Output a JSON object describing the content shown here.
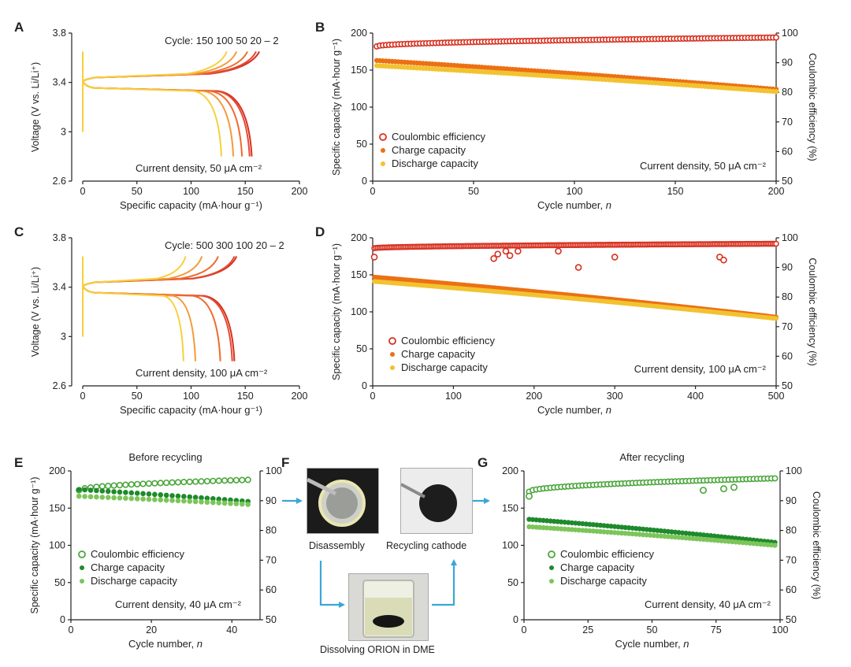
{
  "panel_labels": [
    "A",
    "B",
    "C",
    "D",
    "E",
    "F",
    "G"
  ],
  "colors": {
    "axis": "#222222",
    "red": "#d7301f",
    "orange": "#ec7014",
    "yellow": "#f2c230",
    "green_dark": "#1f8a2c",
    "green_mid": "#4aa63b",
    "green_light": "#7cc55a",
    "arrow": "#3aa6d8"
  },
  "chart_data": [
    {
      "id": "A",
      "type": "line",
      "xlabel": "Specific capacity (mA·hour g⁻¹)",
      "ylabel": "Voltage (V vs. Li/Li⁺)",
      "xlim": [
        0,
        200
      ],
      "ylim": [
        2.6,
        3.8
      ],
      "xticks": [
        0,
        50,
        100,
        150,
        200
      ],
      "yticks": [
        2.6,
        3.0,
        3.4,
        3.8
      ],
      "annotation_cycle": "Cycle:  150  100  50  20 – 2",
      "annotation_current": "Current density, 50 μA cm⁻²",
      "series": [
        {
          "cycle": 2,
          "charge_end": 163,
          "discharge_end": 156,
          "color": "#d7301f"
        },
        {
          "cycle": 20,
          "charge_end": 160,
          "discharge_end": 154,
          "color": "#e34a33"
        },
        {
          "cycle": 50,
          "charge_end": 152,
          "discharge_end": 147,
          "color": "#ef6a2a"
        },
        {
          "cycle": 100,
          "charge_end": 142,
          "discharge_end": 139,
          "color": "#f39a3a"
        },
        {
          "cycle": 150,
          "charge_end": 133,
          "discharge_end": 128,
          "color": "#f6d03c"
        }
      ]
    },
    {
      "id": "B",
      "type": "scatter",
      "xlabel": "Cycle number, n",
      "ylabel": "Specific capacity (mA·hour g⁻¹)",
      "y2label": "Coulombic efficiency (%)",
      "xlim": [
        0,
        200
      ],
      "ylim": [
        0,
        200
      ],
      "y2lim": [
        50,
        100
      ],
      "xticks": [
        0,
        50,
        100,
        150,
        200
      ],
      "yticks": [
        0,
        50,
        100,
        150,
        200
      ],
      "y2ticks": [
        50,
        60,
        70,
        80,
        90,
        100
      ],
      "legend": [
        "Coulombic efficiency",
        "Charge capacity",
        "Discharge capacity"
      ],
      "annotation_current": "Current density, 50 μA cm⁻²",
      "series": [
        {
          "name": "Coulombic efficiency",
          "axis": "y2",
          "marker": "open",
          "color": "#d7301f",
          "x_start": 2,
          "x_end": 200,
          "y_start": 95.5,
          "y_end": 98.5
        },
        {
          "name": "Charge capacity",
          "axis": "y",
          "marker": "filled",
          "color": "#ec7014",
          "x_start": 2,
          "x_end": 200,
          "y_start": 163,
          "y_end": 124
        },
        {
          "name": "Discharge capacity",
          "axis": "y",
          "marker": "filled",
          "color": "#f2c230",
          "x_start": 2,
          "x_end": 200,
          "y_start": 156,
          "y_end": 121
        }
      ]
    },
    {
      "id": "C",
      "type": "line",
      "xlabel": "Specific capacity (mA·hour g⁻¹)",
      "ylabel": "Voltage (V vs. Li/Li⁺)",
      "xlim": [
        0,
        200
      ],
      "ylim": [
        2.6,
        3.8
      ],
      "xticks": [
        0,
        50,
        100,
        150,
        200
      ],
      "yticks": [
        2.6,
        3.0,
        3.4,
        3.8
      ],
      "annotation_cycle": "Cycle:  500   300  100   20 – 2",
      "annotation_current": "Current density, 100 μA cm⁻²",
      "series": [
        {
          "cycle": 2,
          "charge_end": 142,
          "discharge_end": 140,
          "color": "#d7301f"
        },
        {
          "cycle": 20,
          "charge_end": 140,
          "discharge_end": 138,
          "color": "#e34a33"
        },
        {
          "cycle": 100,
          "charge_end": 125,
          "discharge_end": 127,
          "color": "#ef6a2a"
        },
        {
          "cycle": 300,
          "charge_end": 110,
          "discharge_end": 104,
          "color": "#f39a3a"
        },
        {
          "cycle": 500,
          "charge_end": 95,
          "discharge_end": 93,
          "color": "#f6d03c"
        }
      ]
    },
    {
      "id": "D",
      "type": "scatter",
      "xlabel": "Cycle number, n",
      "ylabel": "Specific capacity (mA·hour g⁻¹)",
      "y2label": "Coulombic efficiency (%)",
      "xlim": [
        0,
        500
      ],
      "ylim": [
        0,
        200
      ],
      "y2lim": [
        50,
        100
      ],
      "xticks": [
        0,
        100,
        200,
        300,
        400,
        500
      ],
      "yticks": [
        0,
        50,
        100,
        150,
        200
      ],
      "y2ticks": [
        50,
        60,
        70,
        80,
        90,
        100
      ],
      "legend": [
        "Coulombic efficiency",
        "Charge capacity",
        "Discharge capacity"
      ],
      "annotation_current": "Current density, 100 μA cm⁻²",
      "series": [
        {
          "name": "Coulombic efficiency",
          "axis": "y2",
          "marker": "open",
          "color": "#d7301f",
          "x_start": 2,
          "x_end": 500,
          "y_start": 96.5,
          "y_end": 98.0,
          "outliers": [
            [
              2,
              93.5
            ],
            [
              150,
              93.0
            ],
            [
              155,
              94.5
            ],
            [
              165,
              95.5
            ],
            [
              170,
              94.0
            ],
            [
              180,
              95.5
            ],
            [
              230,
              95.5
            ],
            [
              255,
              90.0
            ],
            [
              300,
              93.5
            ],
            [
              430,
              93.5
            ],
            [
              435,
              92.5
            ]
          ]
        },
        {
          "name": "Charge capacity",
          "axis": "y",
          "marker": "filled",
          "color": "#ec7014",
          "x_start": 2,
          "x_end": 500,
          "y_start": 147,
          "y_end": 93
        },
        {
          "name": "Discharge capacity",
          "axis": "y",
          "marker": "filled",
          "color": "#f2c230",
          "x_start": 2,
          "x_end": 500,
          "y_start": 141,
          "y_end": 91
        }
      ]
    },
    {
      "id": "E",
      "type": "scatter",
      "title": "Before recycling",
      "xlabel": "Cycle number, n",
      "ylabel": "Specific capacity (mA·hour g⁻¹)",
      "xlim": [
        0,
        47
      ],
      "ylim": [
        0,
        200
      ],
      "y2lim": [
        50,
        100
      ],
      "xticks": [
        0,
        20,
        40
      ],
      "yticks": [
        0,
        50,
        100,
        150,
        200
      ],
      "y2ticks": [
        50,
        60,
        70,
        80,
        90,
        100
      ],
      "legend": [
        "Coulombic efficiency",
        "Charge capacity",
        "Discharge capacity"
      ],
      "annotation_current": "Current density, 40 μA cm⁻²",
      "series": [
        {
          "name": "Coulombic efficiency",
          "axis": "y2",
          "marker": "open",
          "color": "#4aa63b",
          "x_start": 2,
          "x_end": 44,
          "y_start": 93.5,
          "y_end": 97.0
        },
        {
          "name": "Charge capacity",
          "axis": "y",
          "marker": "filled",
          "color": "#1f8a2c",
          "x_start": 2,
          "x_end": 44,
          "y_start": 175,
          "y_end": 159
        },
        {
          "name": "Discharge capacity",
          "axis": "y",
          "marker": "filled",
          "color": "#7cc55a",
          "x_start": 2,
          "x_end": 44,
          "y_start": 166,
          "y_end": 155
        }
      ]
    },
    {
      "id": "G",
      "type": "scatter",
      "title": "After recycling",
      "xlabel": "Cycle number, n",
      "y2label": "Coulombic efficiency (%)",
      "xlim": [
        0,
        100
      ],
      "ylim": [
        0,
        200
      ],
      "y2lim": [
        50,
        100
      ],
      "xticks": [
        0,
        25,
        50,
        75,
        100
      ],
      "yticks": [
        0,
        50,
        100,
        150,
        200
      ],
      "y2ticks": [
        50,
        60,
        70,
        80,
        90,
        100
      ],
      "legend": [
        "Coulombic efficiency",
        "Charge capacity",
        "Discharge capacity"
      ],
      "annotation_current": "Current density, 40 μA cm⁻²",
      "series": [
        {
          "name": "Coulombic efficiency",
          "axis": "y2",
          "marker": "open",
          "color": "#4aa63b",
          "x_start": 2,
          "x_end": 98,
          "y_start": 93.0,
          "y_end": 97.5,
          "outliers": [
            [
              2,
              91.5
            ],
            [
              70,
              93.5
            ],
            [
              78,
              94.0
            ],
            [
              82,
              94.5
            ]
          ]
        },
        {
          "name": "Charge capacity",
          "axis": "y",
          "marker": "filled",
          "color": "#1f8a2c",
          "x_start": 2,
          "x_end": 98,
          "y_start": 135,
          "y_end": 104
        },
        {
          "name": "Discharge capacity",
          "axis": "y",
          "marker": "filled",
          "color": "#7cc55a",
          "x_start": 2,
          "x_end": 98,
          "y_start": 125,
          "y_end": 100
        }
      ]
    }
  ],
  "panel_f": {
    "captions": [
      "Disassembly",
      "Recycling cathode",
      "Dissolving ORION in DME"
    ]
  }
}
